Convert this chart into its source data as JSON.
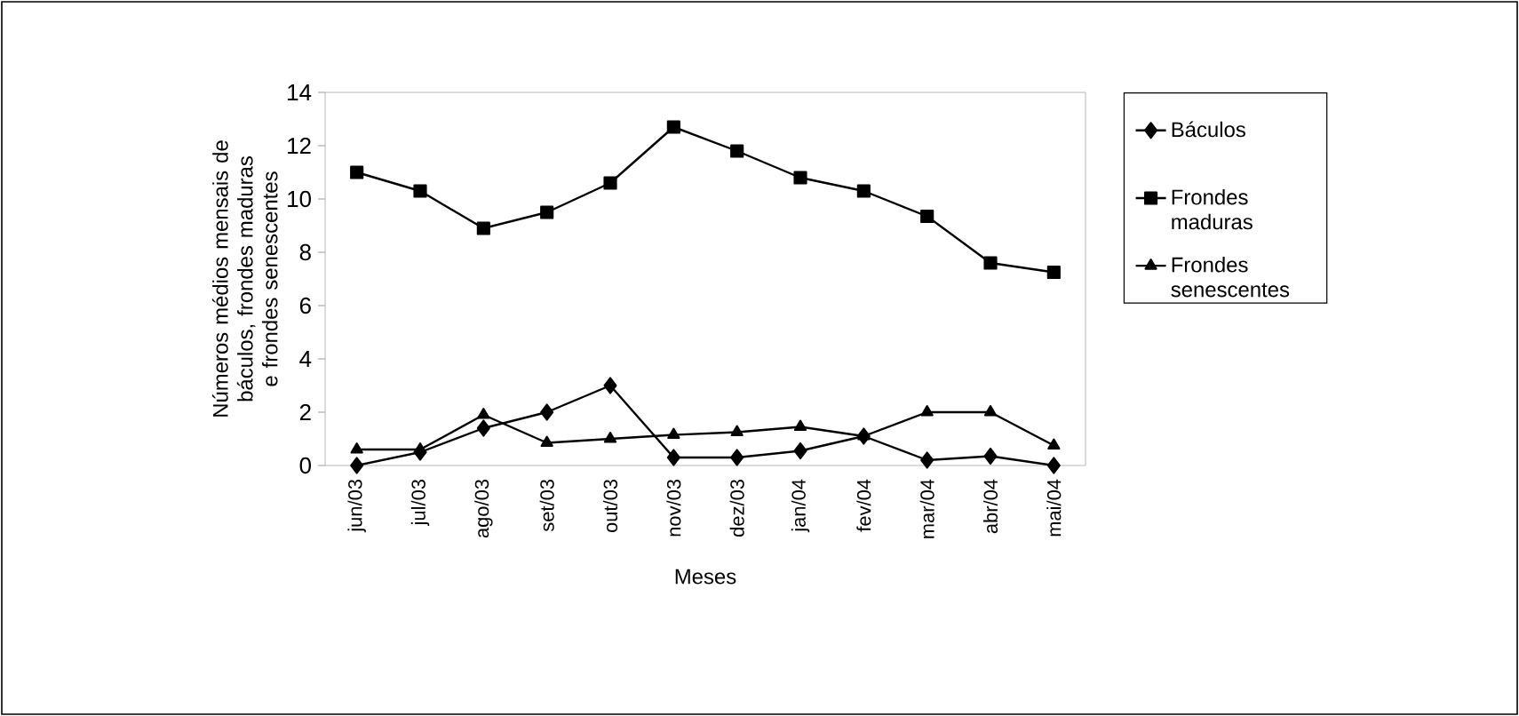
{
  "chart_data": {
    "type": "line",
    "xlabel": "Meses",
    "ylabel": "Números médios mensais de báculos, frondes maduras e frondes senescentes",
    "categories": [
      "jun/03",
      "jul/03",
      "ago/03",
      "set/03",
      "out/03",
      "nov/03",
      "dez/03",
      "jan/04",
      "fev/04",
      "mar/04",
      "abr/04",
      "mai/04"
    ],
    "series": [
      {
        "name": "Báculos",
        "color": "#000000",
        "marker": "diamond",
        "values": [
          0,
          0.5,
          1.4,
          2.0,
          3.0,
          0.3,
          0.3,
          0.55,
          1.1,
          0.2,
          0.35,
          0
        ]
      },
      {
        "name": "Frondes maduras",
        "color": "#000000",
        "marker": "square",
        "values": [
          11.0,
          10.3,
          8.9,
          9.5,
          10.6,
          12.7,
          11.8,
          10.8,
          10.3,
          9.35,
          7.6,
          7.25
        ]
      },
      {
        "name": "Frondes senescentes",
        "color": "#000000",
        "marker": "triangle",
        "values": [
          0.6,
          0.6,
          1.9,
          0.85,
          1.0,
          1.15,
          1.25,
          1.45,
          1.1,
          2.0,
          2.0,
          0.75
        ]
      }
    ],
    "ylim": [
      0,
      14
    ],
    "yticks": [
      0,
      2,
      4,
      6,
      8,
      10,
      12,
      14
    ],
    "legend": "right",
    "grid": false
  }
}
